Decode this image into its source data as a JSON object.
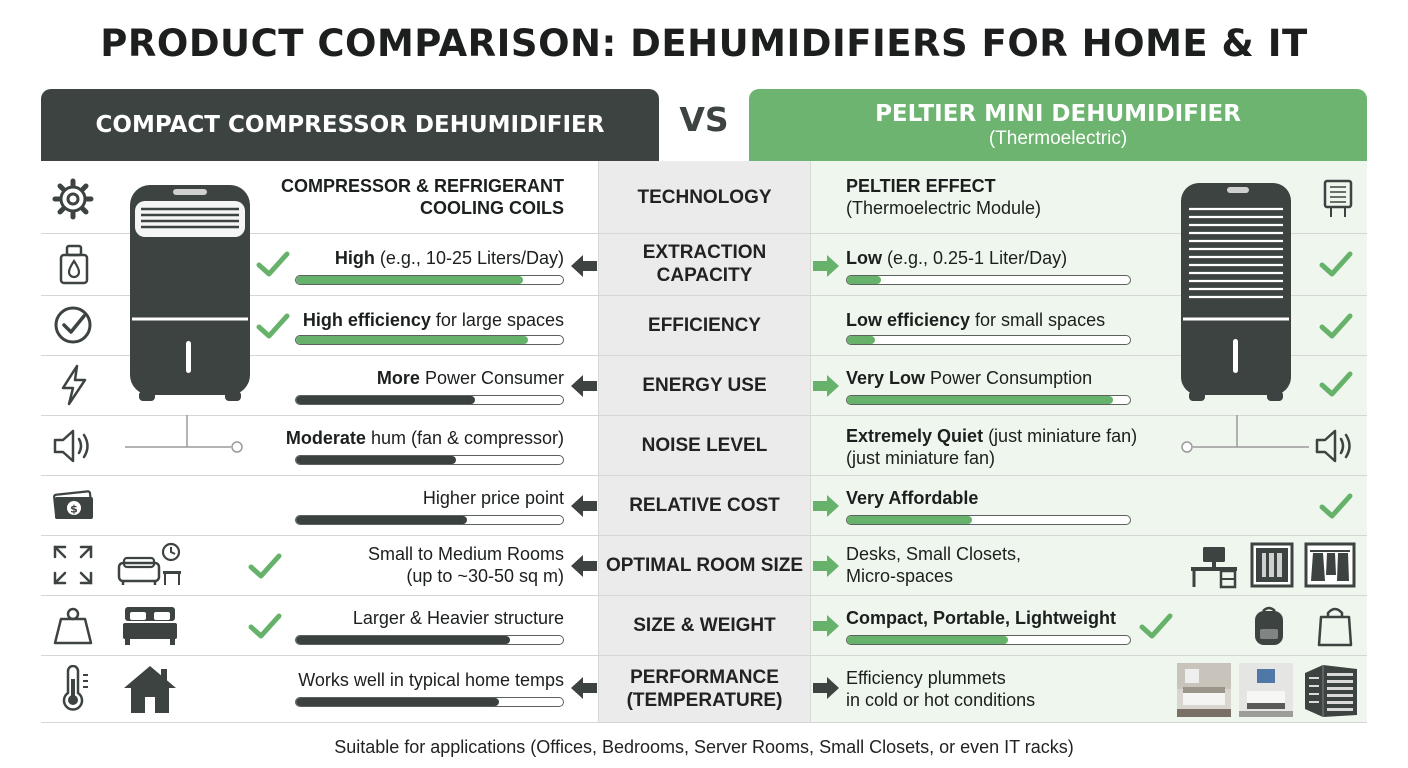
{
  "title": "PRODUCT COMPARISON: DEHUMIDIFIERS FOR HOME & IT",
  "left_header": "COMPACT COMPRESSOR DEHUMIDIFIER",
  "vs": "VS",
  "right_header": {
    "title": "PELTIER MINI DEHUMIDIFIER",
    "subtitle": "(Thermoelectric)"
  },
  "colors": {
    "dark": "#3c4340",
    "green": "#6cb46f",
    "mid_bg": "#ebebeb",
    "right_bg": "#eef6ee"
  },
  "rows": [
    {
      "category": [
        "TECHNOLOGY"
      ],
      "left": {
        "bold": "COMPRESSOR & REFRIGERANT",
        "bold2": "COOLING COILS",
        "rest": "",
        "rest2": ""
      },
      "right": {
        "bold": "PELTIER EFFECT",
        "rest": "",
        "line2": "(Thermoelectric Module)"
      },
      "left_bar": null,
      "right_bar": null,
      "left_icons": [
        "gear-icon"
      ],
      "right_icons": [
        "peltier-module-icon"
      ]
    },
    {
      "category": [
        "EXTRACTION",
        "CAPACITY"
      ],
      "left": {
        "bold": "High",
        "rest": " (e.g., 10-25 Liters/Day)"
      },
      "right": {
        "bold": "Low",
        "rest": " (e.g., 0.25-1 Liter/Day)"
      },
      "left_bar": 0.85,
      "right_bar": 0.12,
      "left_icons": [
        "scale-drop-icon"
      ],
      "right_icons": [
        "check-icon"
      ]
    },
    {
      "category": [
        "EFFICIENCY"
      ],
      "left": {
        "bold": "High efficiency",
        "rest": " for large spaces"
      },
      "right": {
        "bold": "Low efficiency",
        "rest": " for small spaces"
      },
      "left_bar": 0.87,
      "right_bar": 0.1,
      "left_icons": [
        "circle-check-icon"
      ],
      "right_icons": [
        "check-icon"
      ]
    },
    {
      "category": [
        "ENERGY USE"
      ],
      "left": {
        "bold": "More",
        "rest": " Power Consumer"
      },
      "right": {
        "bold": "Very Low",
        "rest": " Power Consumption"
      },
      "left_bar": 0.67,
      "right_bar": 0.94,
      "left_icons": [
        "lightning-icon"
      ],
      "right_icons": [
        "check-icon"
      ]
    },
    {
      "category": [
        "NOISE LEVEL"
      ],
      "left": {
        "bold": "Moderate",
        "rest": " hum (fan & compressor)"
      },
      "right": {
        "bold": "Extremely Quiet",
        "rest": " (just miniature fan)",
        "line2": "(just miniature fan)"
      },
      "left_bar": 0.6,
      "right_bar": null,
      "left_icons": [
        "speaker-icon"
      ],
      "right_icons": [
        "speaker-icon"
      ]
    },
    {
      "category": [
        "RELATIVE COST"
      ],
      "left": {
        "bold": "",
        "rest": "Higher price point"
      },
      "right": {
        "bold": "Very Affordable",
        "rest": ""
      },
      "left_bar": 0.64,
      "right_bar": 0.44,
      "left_icons": [
        "money-icon"
      ],
      "right_icons": [
        "check-icon"
      ]
    },
    {
      "category": [
        "OPTIMAL ROOM SIZE"
      ],
      "left": {
        "bold": "",
        "rest": "Small to Medium Rooms",
        "line2": "(up to ~30-50 sq m)"
      },
      "right": {
        "bold": "",
        "rest": "Desks, Small Closets,",
        "line2": "Micro-spaces"
      },
      "left_bar": null,
      "right_bar": null,
      "left_icons": [
        "expand-icon",
        "living-room-icon"
      ],
      "right_icons": [
        "desk-icon",
        "closet-icon",
        "wardrobe-icon"
      ]
    },
    {
      "category": [
        "SIZE & WEIGHT"
      ],
      "left": {
        "bold": "",
        "rest": "Larger & Heavier structure"
      },
      "right": {
        "bold": "Compact, Portable, Lightweight",
        "rest": ""
      },
      "left_bar": 0.8,
      "right_bar": 0.57,
      "left_icons": [
        "weight-icon",
        "bed-icon"
      ],
      "right_icons": [
        "backpack-icon",
        "bag-icon"
      ]
    },
    {
      "category": [
        "PERFORMANCE",
        "(TEMPERATURE)"
      ],
      "left": {
        "bold": "",
        "rest": "Works well in typical home temps"
      },
      "right": {
        "bold": "",
        "rest": "Efficiency plummets",
        "line2": "in cold or hot conditions"
      },
      "left_bar": 0.76,
      "right_bar": null,
      "left_icons": [
        "thermometer-icon",
        "house-icon"
      ],
      "right_icons": [
        "bedroom-photo",
        "office-photo",
        "server-rack-icon"
      ]
    }
  ],
  "footer": "Suitable for applications (Offices, Bedrooms, Server Rooms, Small Closets, or even IT racks)"
}
